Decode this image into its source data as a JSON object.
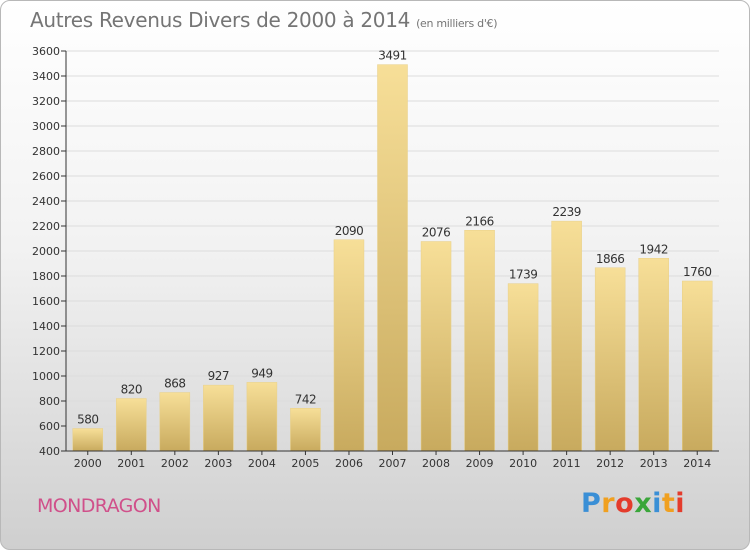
{
  "header": {
    "title": "Autres Revenus Divers de 2000 à 2014",
    "unit": "(en milliers d'€)"
  },
  "footer": {
    "town": "MONDRAGON"
  },
  "brand": {
    "letters": [
      "P",
      "r",
      "o",
      "x",
      "i",
      "t",
      "i"
    ],
    "colors": [
      "#3a8fd6",
      "#f0a020",
      "#e43c2c",
      "#3aa63a",
      "#3a8fd6",
      "#f0a020",
      "#e43c2c"
    ]
  },
  "colors": {
    "bar_fill_light": "#f7df98",
    "bar_fill_dark": "#c8aa5e",
    "axis": "#333333",
    "grid": "#dcdcdc",
    "label": "#333333"
  },
  "chart_data": {
    "type": "bar",
    "categories": [
      "2000",
      "2001",
      "2002",
      "2003",
      "2004",
      "2005",
      "2006",
      "2007",
      "2008",
      "2009",
      "2010",
      "2011",
      "2012",
      "2013",
      "2014"
    ],
    "values": [
      580,
      820,
      868,
      927,
      949,
      742,
      2090,
      3491,
      2076,
      2166,
      1739,
      2239,
      1866,
      1942,
      1760
    ],
    "ylim": [
      400,
      3600
    ],
    "yticks": [
      400,
      600,
      800,
      1000,
      1200,
      1400,
      1600,
      1800,
      2000,
      2200,
      2400,
      2600,
      2800,
      3000,
      3200,
      3400,
      3600
    ],
    "grid": true,
    "xlabel": "",
    "ylabel": ""
  }
}
